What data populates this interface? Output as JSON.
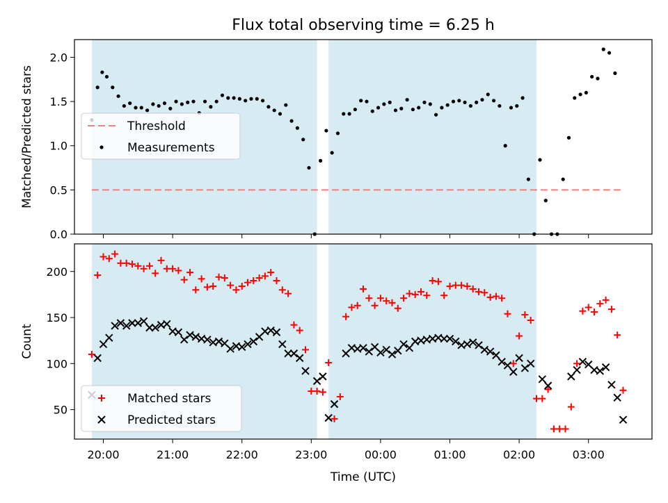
{
  "title": "Flux total observing time = 6.25 h",
  "colors": {
    "band": "#add8e6",
    "threshold": "#f08080",
    "measurement": "#000000",
    "matched": "#ff0000",
    "predicted": "#000000"
  },
  "chart_data": [
    {
      "type": "scatter",
      "title": "Flux total observing time = 6.25 h",
      "ylabel": "Matched/Predicted stars",
      "xlabel": "",
      "xlim": [
        "19:35",
        "03:55"
      ],
      "ylim": [
        0,
        2.2
      ],
      "yticks": [
        "0.0",
        "0.5",
        "1.0",
        "1.5",
        "2.0"
      ],
      "legend": {
        "position": "center-left",
        "entries": [
          "Threshold",
          "Measurements"
        ]
      },
      "shaded_intervals": [
        [
          "19:50",
          "23:05"
        ],
        [
          "23:15",
          "02:15"
        ]
      ],
      "threshold": {
        "name": "Threshold",
        "y": 0.5,
        "x": [
          "19:50",
          "03:30"
        ]
      },
      "series": [
        {
          "name": "Measurements",
          "x": [
            "19:50",
            "19:55",
            "19:59",
            "20:03",
            "20:08",
            "20:13",
            "20:18",
            "20:23",
            "20:28",
            "20:33",
            "20:38",
            "20:43",
            "20:48",
            "20:53",
            "20:58",
            "21:03",
            "21:08",
            "21:13",
            "21:18",
            "21:23",
            "21:28",
            "21:33",
            "21:38",
            "21:43",
            "21:48",
            "21:53",
            "21:58",
            "22:03",
            "22:08",
            "22:13",
            "22:18",
            "22:23",
            "22:28",
            "22:33",
            "22:38",
            "22:43",
            "22:48",
            "22:53",
            "22:58",
            "23:03",
            "23:08",
            "23:13",
            "23:18",
            "23:23",
            "23:28",
            "23:33",
            "23:38",
            "23:43",
            "23:48",
            "23:53",
            "23:58",
            "00:03",
            "00:08",
            "00:13",
            "00:18",
            "00:23",
            "00:28",
            "00:33",
            "00:38",
            "00:43",
            "00:48",
            "00:53",
            "00:58",
            "01:03",
            "01:08",
            "01:13",
            "01:18",
            "01:23",
            "01:28",
            "01:33",
            "01:38",
            "01:43",
            "01:48",
            "01:53",
            "01:58",
            "02:03",
            "02:08",
            "02:13",
            "02:18",
            "02:23",
            "02:28",
            "02:33",
            "02:38",
            "02:43",
            "02:48",
            "02:53",
            "02:58",
            "03:03",
            "03:08",
            "03:13",
            "03:18",
            "03:23",
            "03:28"
          ],
          "y": [
            1.29,
            1.66,
            1.83,
            1.78,
            1.66,
            1.56,
            1.45,
            1.48,
            1.43,
            1.43,
            1.4,
            1.47,
            1.45,
            1.48,
            1.42,
            1.5,
            1.47,
            1.49,
            1.5,
            1.37,
            1.5,
            1.44,
            1.5,
            1.57,
            1.54,
            1.54,
            1.53,
            1.51,
            1.53,
            1.53,
            1.51,
            1.44,
            1.4,
            1.36,
            1.46,
            1.28,
            1.2,
            1.07,
            0.75,
            0.0,
            0.83,
            1.17,
            0.92,
            1.14,
            1.36,
            1.36,
            1.41,
            1.51,
            1.5,
            1.39,
            1.43,
            1.47,
            1.49,
            1.4,
            1.42,
            1.52,
            1.41,
            1.43,
            1.49,
            1.47,
            1.35,
            1.43,
            1.46,
            1.5,
            1.51,
            1.49,
            1.45,
            1.49,
            1.52,
            1.58,
            1.51,
            1.45,
            1.0,
            1.43,
            1.45,
            1.54,
            0.62,
            0.0,
            0.84,
            0.38,
            0.0,
            0.0,
            0.62,
            1.09,
            1.54,
            1.58,
            1.6,
            1.78,
            1.76,
            2.09,
            2.05,
            1.82,
            null
          ]
        }
      ]
    },
    {
      "type": "scatter",
      "title": "",
      "ylabel": "Count",
      "xlabel": "Time (UTC)",
      "xlim": [
        "19:35",
        "03:55"
      ],
      "ylim": [
        18,
        230
      ],
      "xticks": [
        "20:00",
        "21:00",
        "22:00",
        "23:00",
        "00:00",
        "01:00",
        "02:00",
        "03:00"
      ],
      "yticks": [
        "50",
        "100",
        "150",
        "200"
      ],
      "legend": {
        "position": "lower-left",
        "entries": [
          "Matched stars",
          "Predicted stars"
        ]
      },
      "shaded_intervals": [
        [
          "19:50",
          "23:05"
        ],
        [
          "23:15",
          "02:15"
        ]
      ],
      "series": [
        {
          "name": "Matched stars",
          "x": [
            "19:50",
            "19:55",
            "20:00",
            "20:05",
            "20:10",
            "20:15",
            "20:20",
            "20:25",
            "20:30",
            "20:35",
            "20:40",
            "20:45",
            "20:50",
            "20:55",
            "21:00",
            "21:05",
            "21:10",
            "21:15",
            "21:20",
            "21:25",
            "21:30",
            "21:35",
            "21:40",
            "21:45",
            "21:50",
            "21:55",
            "22:00",
            "22:05",
            "22:10",
            "22:15",
            "22:20",
            "22:25",
            "22:30",
            "22:35",
            "22:40",
            "22:45",
            "22:50",
            "22:55",
            "23:00",
            "23:05",
            "23:10",
            "23:15",
            "23:20",
            "23:25",
            "23:30",
            "23:35",
            "23:40",
            "23:45",
            "23:50",
            "23:55",
            "00:00",
            "00:05",
            "00:10",
            "00:15",
            "00:20",
            "00:25",
            "00:30",
            "00:35",
            "00:40",
            "00:45",
            "00:50",
            "00:55",
            "01:00",
            "01:05",
            "01:10",
            "01:15",
            "01:20",
            "01:25",
            "01:30",
            "01:35",
            "01:40",
            "01:45",
            "01:50",
            "01:55",
            "02:00",
            "02:05",
            "02:10",
            "02:15",
            "02:20",
            "02:25",
            "02:30",
            "02:35",
            "02:40",
            "02:45",
            "02:50",
            "02:55",
            "03:00",
            "03:05",
            "03:10",
            "03:15",
            "03:20",
            "03:25",
            "03:30"
          ],
          "y": [
            110,
            196,
            216,
            214,
            219,
            209,
            209,
            208,
            206,
            203,
            206,
            198,
            212,
            203,
            203,
            201,
            191,
            199,
            180,
            192,
            183,
            184,
            194,
            193,
            185,
            180,
            184,
            188,
            190,
            193,
            195,
            199,
            190,
            180,
            176,
            142,
            136,
            115,
            70,
            70,
            69,
            101,
            40,
            64,
            151,
            161,
            163,
            181,
            171,
            163,
            171,
            168,
            166,
            160,
            171,
            176,
            175,
            178,
            174,
            190,
            189,
            174,
            184,
            185,
            185,
            184,
            181,
            178,
            177,
            172,
            173,
            171,
            154,
            100,
            130,
            153,
            147,
            62,
            62,
            72,
            29,
            29,
            29,
            53,
            100,
            157,
            161,
            156,
            165,
            169,
            159,
            131,
            71
          ]
        },
        {
          "name": "Predicted stars",
          "x": [
            "19:50",
            "19:55",
            "20:00",
            "20:05",
            "20:10",
            "20:15",
            "20:20",
            "20:25",
            "20:30",
            "20:35",
            "20:40",
            "20:45",
            "20:50",
            "20:55",
            "21:00",
            "21:05",
            "21:10",
            "21:15",
            "21:20",
            "21:25",
            "21:30",
            "21:35",
            "21:40",
            "21:45",
            "21:50",
            "21:55",
            "22:00",
            "22:05",
            "22:10",
            "22:15",
            "22:20",
            "22:25",
            "22:30",
            "22:35",
            "22:40",
            "22:45",
            "22:50",
            "22:55",
            "23:00",
            "23:05",
            "23:10",
            "23:15",
            "23:20",
            "23:25",
            "23:30",
            "23:35",
            "23:40",
            "23:45",
            "23:50",
            "23:55",
            "00:00",
            "00:05",
            "00:10",
            "00:15",
            "00:20",
            "00:25",
            "00:30",
            "00:35",
            "00:40",
            "00:45",
            "00:50",
            "00:55",
            "01:00",
            "01:05",
            "01:10",
            "01:15",
            "01:20",
            "01:25",
            "01:30",
            "01:35",
            "01:40",
            "01:45",
            "01:50",
            "01:55",
            "02:00",
            "02:05",
            "02:10",
            "02:15",
            "02:20",
            "02:25",
            "02:30",
            "02:35",
            "02:40",
            "02:45",
            "02:50",
            "02:55",
            "03:00",
            "03:05",
            "03:10",
            "03:15",
            "03:20",
            "03:25",
            "03:30"
          ],
          "y": [
            66,
            106,
            121,
            128,
            141,
            144,
            141,
            144,
            144,
            146,
            139,
            139,
            142,
            143,
            135,
            134,
            126,
            131,
            129,
            127,
            126,
            123,
            124,
            122,
            116,
            119,
            118,
            121,
            124,
            129,
            135,
            136,
            134,
            121,
            111,
            111,
            106,
            92,
            null,
            81,
            86,
            41,
            56,
            null,
            111,
            117,
            116,
            117,
            113,
            118,
            112,
            115,
            110,
            114,
            121,
            117,
            124,
            125,
            126,
            127,
            128,
            127,
            127,
            124,
            120,
            121,
            123,
            120,
            115,
            113,
            109,
            102,
            98,
            91,
            106,
            95,
            100,
            null,
            83,
            76,
            null,
            null,
            null,
            86,
            93,
            102,
            99,
            93,
            92,
            96,
            77,
            63,
            39
          ]
        }
      ]
    }
  ]
}
